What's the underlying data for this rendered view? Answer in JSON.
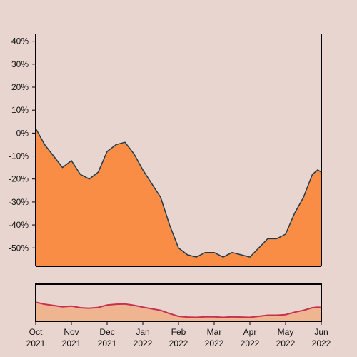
{
  "chart_data": {
    "type": "area",
    "color": "#f98d45",
    "line_color": "#1f3b4d",
    "navigator_color": "#c8304f",
    "x": [
      0,
      0.25,
      0.5,
      0.75,
      1,
      1.25,
      1.5,
      1.75,
      2,
      2.25,
      2.5,
      2.75,
      3,
      3.25,
      3.5,
      3.75,
      4,
      4.25,
      4.5,
      4.75,
      5,
      5.25,
      5.5,
      5.75,
      6,
      6.25,
      6.5,
      6.75,
      7,
      7.25,
      7.5,
      7.75,
      7.9,
      8
    ],
    "values": [
      2,
      -5,
      -10,
      -15,
      -12,
      -18,
      -20,
      -17,
      -8,
      -5,
      -4,
      -9,
      -16,
      -22,
      -28,
      -40,
      -50,
      -53,
      -54,
      -52,
      -52,
      -54,
      -52,
      -53,
      -54,
      -50,
      -46,
      -46,
      -44,
      -35,
      -28,
      -18,
      -16,
      -17
    ],
    "xlim": [
      0,
      8
    ],
    "xticks": [
      {
        "value": 0,
        "label": "Oct 2021"
      },
      {
        "value": 1,
        "label": "Nov 2021"
      },
      {
        "value": 2,
        "label": "Dec 2021"
      },
      {
        "value": 3,
        "label": "Jan 2022"
      },
      {
        "value": 4,
        "label": "Feb 2022"
      },
      {
        "value": 5,
        "label": "Mar 2022"
      },
      {
        "value": 6,
        "label": "Apr 2022"
      },
      {
        "value": 7,
        "label": "May 2022"
      },
      {
        "value": 8,
        "label": "Jun 2022"
      }
    ],
    "ylim": [
      -58,
      43
    ],
    "yticks": [
      {
        "value": 40,
        "label": "40%"
      },
      {
        "value": 30,
        "label": "30%"
      },
      {
        "value": 20,
        "label": "20%"
      },
      {
        "value": 10,
        "label": "10%"
      },
      {
        "value": 0,
        "label": "0%"
      },
      {
        "value": -10,
        "label": "-10%"
      },
      {
        "value": -20,
        "label": "-20%"
      },
      {
        "value": -30,
        "label": "-30%"
      },
      {
        "value": -40,
        "label": "-40%"
      },
      {
        "value": -50,
        "label": "-50%"
      }
    ]
  }
}
